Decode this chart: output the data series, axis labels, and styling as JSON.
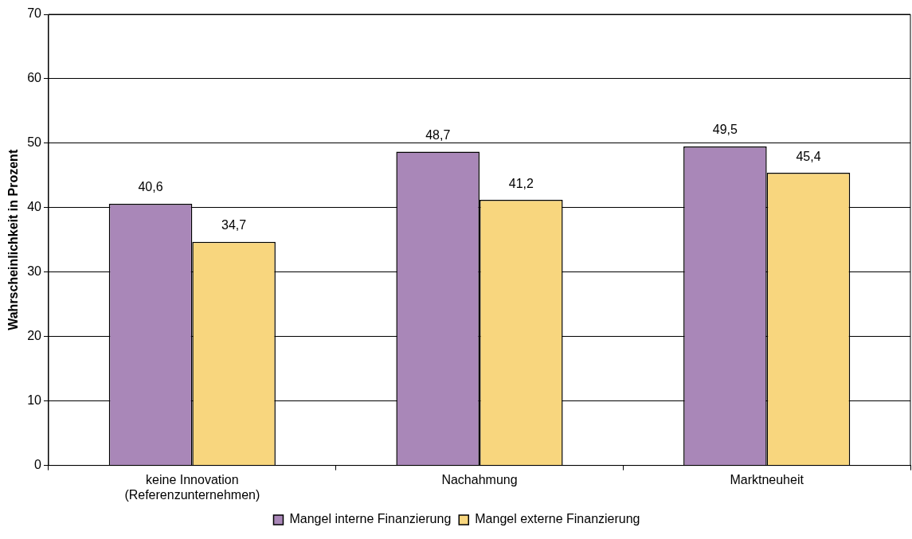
{
  "chart_data": {
    "type": "bar",
    "ylabel": "Wahrscheinlichkeit in Prozent",
    "categories": [
      "keine Innovation\n(Referenzunternehmen)",
      "Nachahmung",
      "Marktneuheit"
    ],
    "series": [
      {
        "name": "Mangel interne Finanzierung",
        "color": "#a987b8",
        "values": [
          40.6,
          48.7,
          49.5
        ],
        "value_labels": [
          "40,6",
          "48,7",
          "49,5"
        ]
      },
      {
        "name": "Mangel externe Finanzierung",
        "color": "#f8d67e",
        "values": [
          34.7,
          41.2,
          45.4
        ],
        "value_labels": [
          "34,7",
          "41,2",
          "45,4"
        ]
      }
    ],
    "ylim": [
      0,
      70
    ],
    "yticks": [
      0,
      10,
      20,
      30,
      40,
      50,
      60,
      70
    ],
    "grid": "y",
    "legend": "bottom"
  }
}
